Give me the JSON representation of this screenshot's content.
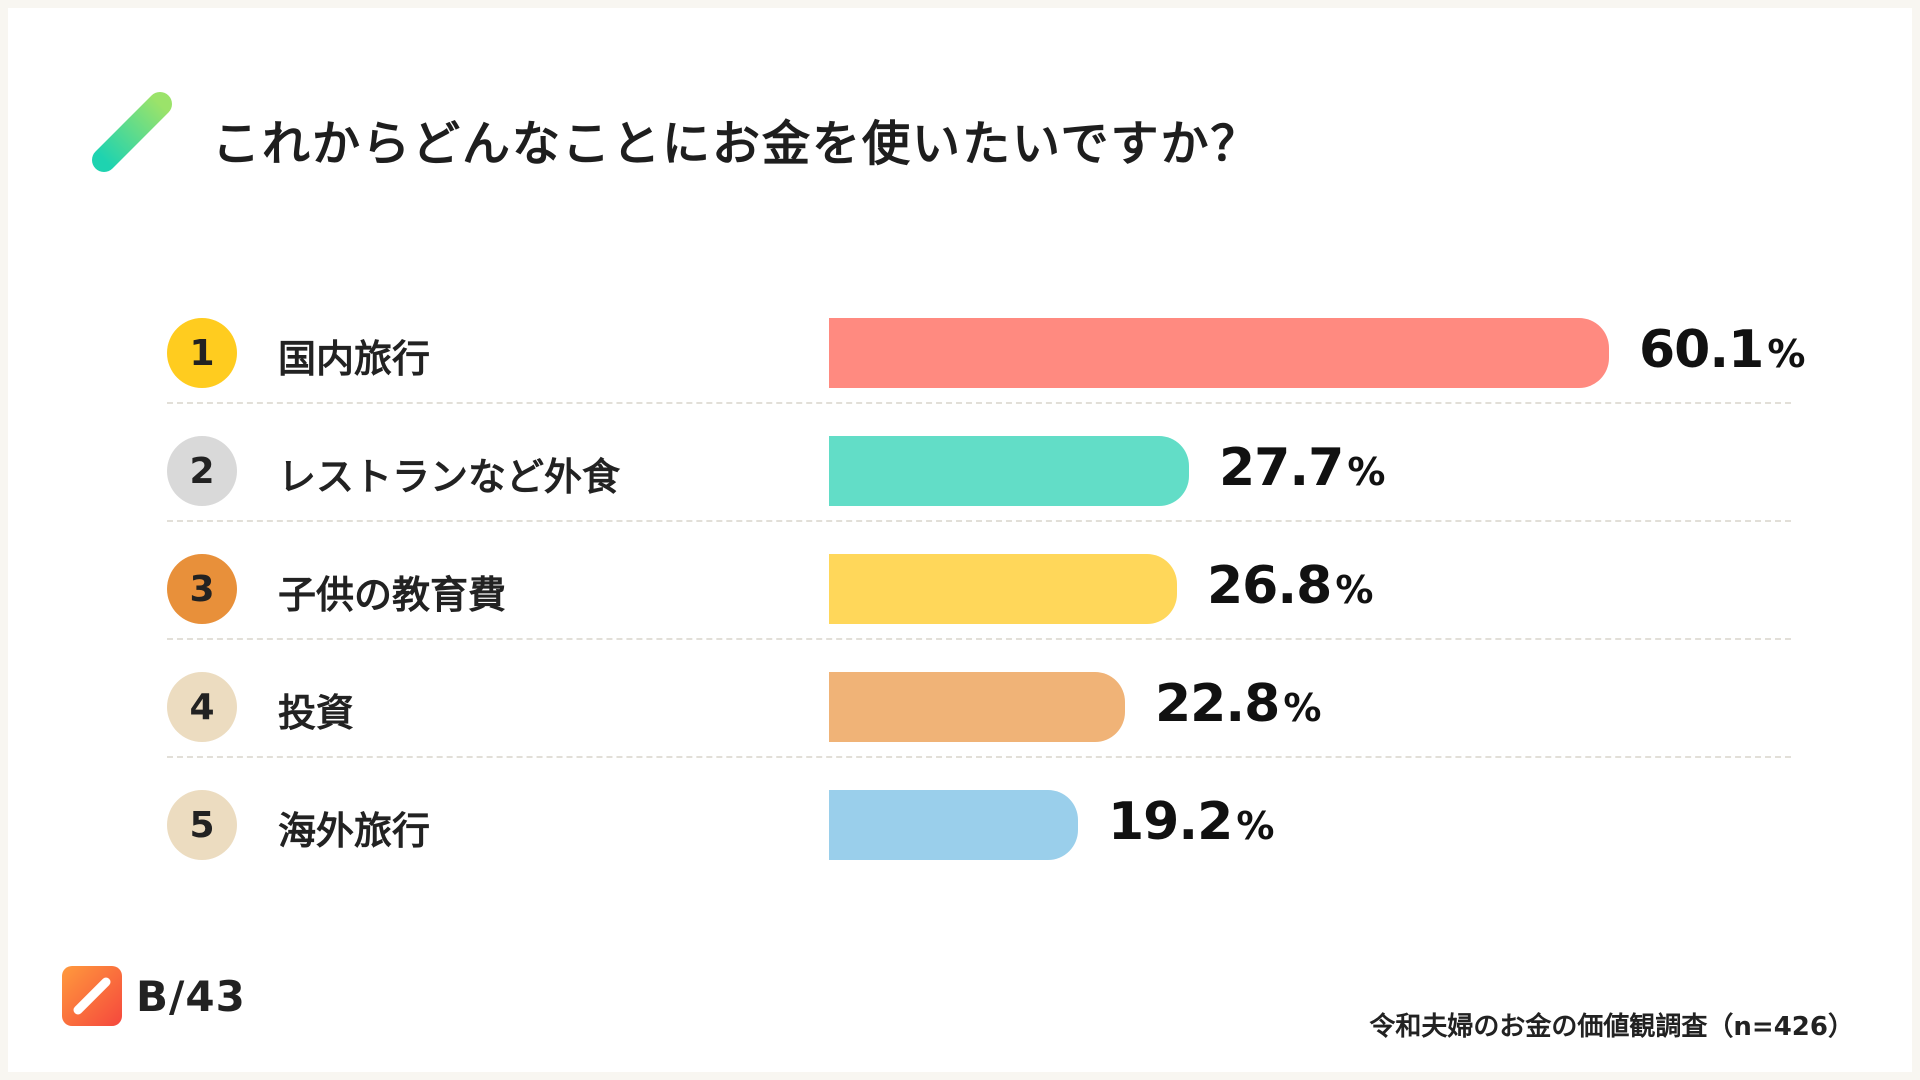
{
  "header": {
    "title": "これからどんなことにお金を使いたいですか？",
    "icon": "pencil-stroke-icon"
  },
  "chart_data": {
    "type": "bar",
    "orientation": "horizontal",
    "title": "これからどんなことにお金を使いたいですか？",
    "categories": [
      "国内旅行",
      "レストランなど外食",
      "子供の教育費",
      "投資",
      "海外旅行"
    ],
    "ranks": [
      "1",
      "2",
      "3",
      "4",
      "5"
    ],
    "values": [
      60.1,
      27.7,
      26.8,
      22.8,
      19.2
    ],
    "value_labels": [
      "60.1",
      "27.7",
      "26.8",
      "22.8",
      "19.2"
    ],
    "unit": "%",
    "xlim": [
      0,
      60.1
    ],
    "grid": false,
    "legend": "none",
    "bar_colors": [
      "#ff8a80",
      "#62ddc7",
      "#ffd75a",
      "#f0b377",
      "#9acfeb"
    ],
    "rank_colors": [
      "#ffcc1f",
      "#d9d9d9",
      "#e8903a",
      "#ecdcc0",
      "#ecdcc0"
    ]
  },
  "footer": {
    "brand_text": "B/43",
    "brand_icon": "b43-logo-icon",
    "source": "令和夫婦のお金の価値観調査（n=426）"
  }
}
